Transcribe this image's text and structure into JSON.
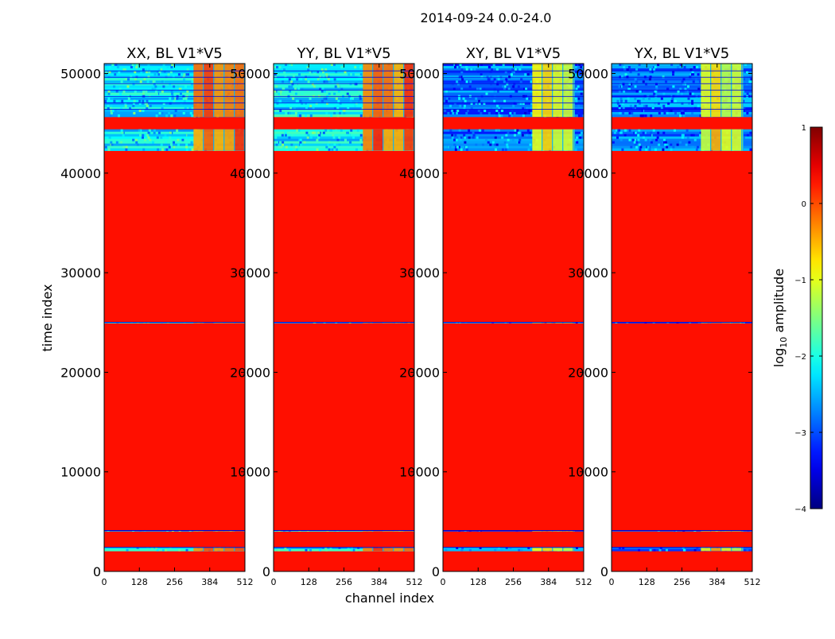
{
  "chart_data": {
    "type": "heatmap",
    "suptitle": "2014-09-24 0.0-24.0",
    "xlabel": "channel index",
    "ylabel": "time index",
    "xlim": [
      0,
      512
    ],
    "ylim": [
      0,
      51000
    ],
    "xticks": [
      0,
      128,
      256,
      384,
      512
    ],
    "yticks": [
      0,
      10000,
      20000,
      30000,
      40000,
      50000
    ],
    "colorbar": {
      "label_prefix": "log",
      "label_sub": "10",
      "label_suffix": " amplitude",
      "range": [
        -4,
        1
      ],
      "ticks": [
        1,
        0,
        -1,
        -2,
        -3,
        -4
      ],
      "tick_labels": [
        "1",
        "0",
        "−1",
        "−2",
        "−3",
        "−4"
      ],
      "colormap": "jet"
    },
    "fill_value_log10": 0.3,
    "panels": [
      {
        "title": "XX, BL V1*V5",
        "data_time_ranges": [
          [
            2050,
            2450
          ],
          [
            4050,
            4150
          ],
          [
            24950,
            25050
          ],
          [
            42250,
            44400
          ],
          [
            45650,
            51000
          ]
        ],
        "rfi_channel_range": [
          325,
          512
        ],
        "base_noise_log10": -2.2,
        "rfi_level_log10": -0.3
      },
      {
        "title": "YY, BL V1*V5",
        "data_time_ranges": [
          [
            2050,
            2450
          ],
          [
            4050,
            4150
          ],
          [
            24950,
            25050
          ],
          [
            42250,
            44400
          ],
          [
            45650,
            51000
          ]
        ],
        "rfi_channel_range": [
          325,
          512
        ],
        "base_noise_log10": -2.2,
        "rfi_level_log10": -0.3
      },
      {
        "title": "XY, BL V1*V5",
        "data_time_ranges": [
          [
            2050,
            2450
          ],
          [
            4050,
            4150
          ],
          [
            24950,
            25050
          ],
          [
            42250,
            44400
          ],
          [
            45650,
            51000
          ]
        ],
        "rfi_channel_range": [
          325,
          480
        ],
        "base_noise_log10": -2.8,
        "rfi_level_log10": -1.0
      },
      {
        "title": "YX, BL V1*V5",
        "data_time_ranges": [
          [
            2050,
            2450
          ],
          [
            4050,
            4150
          ],
          [
            24950,
            25050
          ],
          [
            42250,
            44400
          ],
          [
            45650,
            51000
          ]
        ],
        "rfi_channel_range": [
          325,
          480
        ],
        "base_noise_log10": -2.8,
        "rfi_level_log10": -1.0
      }
    ]
  }
}
